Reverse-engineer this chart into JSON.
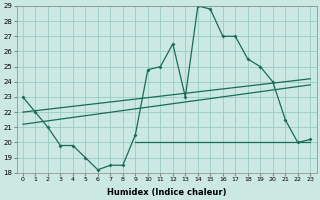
{
  "xlabel": "Humidex (Indice chaleur)",
  "bg_color": "#cce8e2",
  "grid_color": "#99ccc4",
  "line_color": "#1a6b5a",
  "x_values": [
    0,
    1,
    2,
    3,
    4,
    5,
    6,
    7,
    8,
    9,
    10,
    11,
    12,
    13,
    14,
    15,
    16,
    17,
    18,
    19,
    20,
    21,
    22,
    23
  ],
  "series_main": [
    23,
    22,
    21,
    19.8,
    19.8,
    19.0,
    18.2,
    18.5,
    18.5,
    20.5,
    24.8,
    25.0,
    26.5,
    23.0,
    29.0,
    28.8,
    27.0,
    27.0,
    25.5,
    25.0,
    24.0,
    21.5,
    20.0,
    20.2
  ],
  "series_linear1": [
    [
      0,
      22.0
    ],
    [
      23,
      24.2
    ]
  ],
  "series_linear2": [
    [
      0,
      21.2
    ],
    [
      23,
      23.8
    ]
  ],
  "series_flat": [
    [
      9,
      20.0
    ],
    [
      23,
      20.0
    ]
  ],
  "ylim": [
    18,
    29
  ],
  "xlim": [
    -0.5,
    23.5
  ],
  "yticks": [
    18,
    19,
    20,
    21,
    22,
    23,
    24,
    25,
    26,
    27,
    28,
    29
  ],
  "xticks": [
    0,
    1,
    2,
    3,
    4,
    5,
    6,
    7,
    8,
    9,
    10,
    11,
    12,
    13,
    14,
    15,
    16,
    17,
    18,
    19,
    20,
    21,
    22,
    23
  ]
}
